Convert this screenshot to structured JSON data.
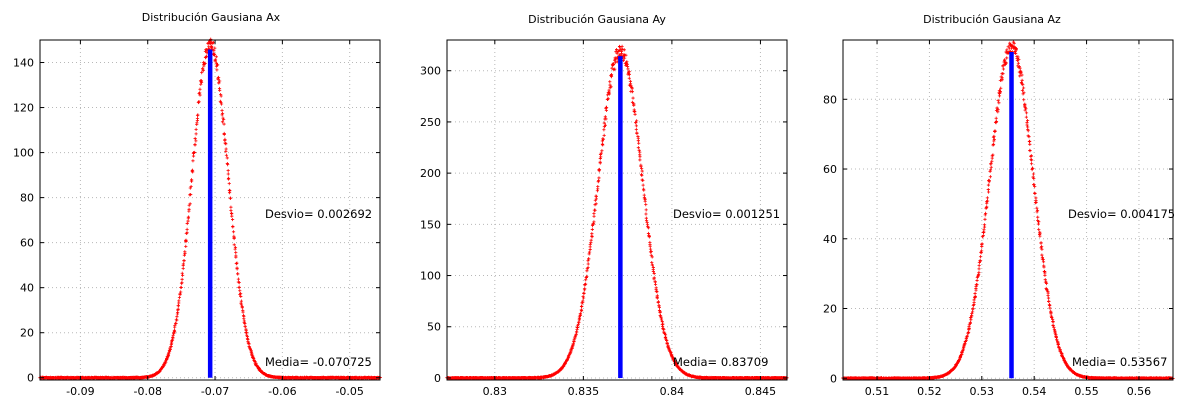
{
  "chart_data": [
    {
      "type": "scatter",
      "title": "Distribución Gausiana Ax",
      "xlim": [
        -0.096,
        -0.0455
      ],
      "ylim": [
        -1,
        150
      ],
      "xticks": [
        -0.09,
        -0.08,
        -0.07,
        -0.06,
        -0.05
      ],
      "xtick_labels": [
        "-0.09",
        "-0.08",
        "-0.07",
        "-0.06",
        "-0.05"
      ],
      "yticks": [
        0,
        20,
        40,
        60,
        80,
        100,
        120,
        140
      ],
      "ytick_labels": [
        "0",
        "20",
        "40",
        "60",
        "80",
        "100",
        "120",
        "140"
      ],
      "grid": true,
      "mean": -0.070725,
      "std": 0.002692,
      "peak": 148,
      "x_range": [
        -0.096,
        -0.0455
      ],
      "mean_line_color": "#0000ff",
      "point_color": "#ff0000",
      "annotations": {
        "desvio": "Desvio= 0.002692",
        "media": "Media= -0.070725"
      }
    },
    {
      "type": "scatter",
      "title": "Distribución Gausiana Ay",
      "xlim": [
        0.8273,
        0.8465
      ],
      "ylim": [
        -2,
        330
      ],
      "xticks": [
        0.83,
        0.835,
        0.84,
        0.845
      ],
      "xtick_labels": [
        "0.83",
        "0.835",
        "0.84",
        "0.845"
      ],
      "yticks": [
        0,
        50,
        100,
        150,
        200,
        250,
        300
      ],
      "ytick_labels": [
        "0",
        "50",
        "100",
        "150",
        "200",
        "250",
        "300"
      ],
      "grid": true,
      "mean": 0.83709,
      "std": 0.001251,
      "peak": 319,
      "x_range": [
        0.8273,
        0.8465
      ],
      "mean_line_color": "#0000ff",
      "point_color": "#ff0000",
      "annotations": {
        "desvio": "Desvio= 0.001251",
        "media": "Media= 0.83709"
      }
    },
    {
      "type": "scatter",
      "title": "Distribución Gausiana Az",
      "xlim": [
        0.5035,
        0.5665
      ],
      "ylim": [
        -0.5,
        97
      ],
      "xticks": [
        0.51,
        0.52,
        0.53,
        0.54,
        0.55,
        0.56
      ],
      "xtick_labels": [
        "0.51",
        "0.52",
        "0.53",
        "0.54",
        "0.55",
        "0.56"
      ],
      "yticks": [
        0,
        20,
        40,
        60,
        80
      ],
      "ytick_labels": [
        "0",
        "20",
        "40",
        "60",
        "80"
      ],
      "grid": true,
      "mean": 0.53567,
      "std": 0.004175,
      "peak": 95,
      "x_range": [
        0.5035,
        0.5665
      ],
      "mean_line_color": "#0000ff",
      "point_color": "#ff0000",
      "annotations": {
        "desvio": "Desvio= 0.004175",
        "media": "Media= 0.53567"
      }
    }
  ]
}
